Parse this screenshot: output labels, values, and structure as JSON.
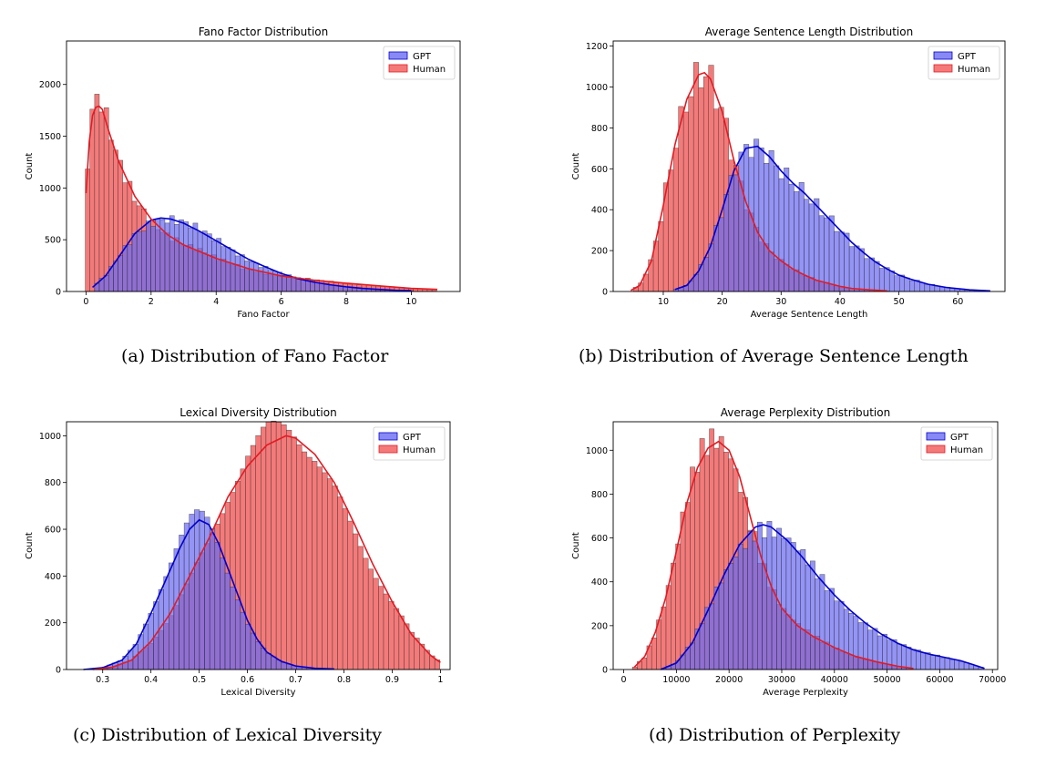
{
  "colors": {
    "gpt_fill": "#6b6bf2",
    "gpt_line": "#0000d0",
    "human_fill": "#f47a7a",
    "human_line": "#e31b23",
    "overlap_fill": "#a4306a"
  },
  "captions": [
    "(a) Distribution of Fano Factor",
    "(b) Distribution of Average Sentence Length",
    "(c) Distribution of Lexical Diversity",
    "(d) Distribution of Perplexity"
  ],
  "chart_data": [
    {
      "type": "histogram",
      "title": "Fano Factor Distribution",
      "xlabel": "Fano Factor",
      "ylabel": "Count",
      "xlim": [
        -0.6,
        11.5
      ],
      "ylim": [
        0,
        2420
      ],
      "xticks": [
        0,
        2,
        4,
        6,
        8,
        10
      ],
      "yticks": [
        0,
        500,
        1000,
        1500,
        2000
      ],
      "legend": {
        "position": "top-right",
        "entries": [
          "GPT",
          "Human"
        ]
      },
      "series": [
        {
          "name": "GPT",
          "x": [
            0.2,
            0.6,
            1.0,
            1.5,
            2.0,
            2.3,
            2.6,
            3.0,
            3.5,
            4.0,
            4.5,
            5.0,
            5.5,
            6.0,
            6.5,
            7.0,
            7.5,
            8.0,
            8.5,
            9.0,
            9.5,
            10.0
          ],
          "values": [
            40,
            150,
            330,
            560,
            690,
            710,
            700,
            660,
            580,
            490,
            400,
            310,
            240,
            175,
            125,
            90,
            65,
            45,
            30,
            20,
            12,
            8
          ]
        },
        {
          "name": "Human",
          "x": [
            0.0,
            0.1,
            0.2,
            0.3,
            0.4,
            0.5,
            0.7,
            1.0,
            1.5,
            2.0,
            2.5,
            3.0,
            4.0,
            5.0,
            6.0,
            7.0,
            8.0,
            9.0,
            10.0,
            10.8
          ],
          "values": [
            950,
            1450,
            1700,
            1780,
            1790,
            1760,
            1550,
            1260,
            920,
            700,
            550,
            450,
            320,
            220,
            150,
            110,
            80,
            55,
            30,
            20
          ]
        }
      ]
    },
    {
      "type": "histogram",
      "title": "Average Sentence Length Distribution",
      "xlabel": "Average Sentence Length",
      "ylabel": "Count",
      "xlim": [
        1.5,
        68
      ],
      "ylim": [
        0,
        1225
      ],
      "xticks": [
        10,
        20,
        30,
        40,
        50,
        60
      ],
      "yticks": [
        0,
        200,
        400,
        600,
        800,
        1000,
        1200
      ],
      "legend": {
        "position": "top-right",
        "entries": [
          "GPT",
          "Human"
        ]
      },
      "series": [
        {
          "name": "GPT",
          "x": [
            12,
            14,
            16,
            18,
            20,
            22,
            24,
            26,
            28,
            30,
            32,
            34,
            36,
            38,
            40,
            42,
            44,
            46,
            48,
            50,
            52,
            55,
            58,
            62,
            65.5
          ],
          "values": [
            10,
            30,
            100,
            220,
            400,
            590,
            700,
            710,
            660,
            590,
            530,
            480,
            420,
            360,
            300,
            240,
            190,
            145,
            110,
            80,
            60,
            35,
            20,
            8,
            3
          ]
        },
        {
          "name": "Human",
          "x": [
            4.5,
            6,
            8,
            10,
            12,
            14,
            16,
            17,
            18,
            20,
            22,
            24,
            26,
            28,
            30,
            32,
            34,
            36,
            38,
            40,
            42,
            45,
            48
          ],
          "values": [
            5,
            30,
            150,
            420,
            720,
            940,
            1060,
            1070,
            1040,
            880,
            640,
            440,
            290,
            200,
            150,
            110,
            80,
            55,
            40,
            25,
            15,
            8,
            3
          ]
        }
      ]
    },
    {
      "type": "histogram",
      "title": "Lexical Diversity Distribution",
      "xlabel": "Lexical Diversity",
      "ylabel": "Count",
      "xlim": [
        0.225,
        1.02
      ],
      "ylim": [
        0,
        1060
      ],
      "xticks": [
        0.3,
        0.4,
        0.5,
        0.6,
        0.7,
        0.8,
        0.9,
        1.0
      ],
      "yticks": [
        0,
        200,
        400,
        600,
        800,
        1000
      ],
      "legend": {
        "position": "top-right",
        "entries": [
          "GPT",
          "Human"
        ]
      },
      "series": [
        {
          "name": "GPT",
          "x": [
            0.26,
            0.3,
            0.34,
            0.37,
            0.4,
            0.43,
            0.46,
            0.48,
            0.5,
            0.52,
            0.54,
            0.56,
            0.58,
            0.6,
            0.62,
            0.64,
            0.67,
            0.7,
            0.74,
            0.78
          ],
          "values": [
            0,
            8,
            40,
            110,
            240,
            380,
            520,
            600,
            640,
            620,
            540,
            430,
            320,
            210,
            130,
            75,
            35,
            15,
            5,
            2
          ]
        },
        {
          "name": "Human",
          "x": [
            0.28,
            0.32,
            0.36,
            0.4,
            0.44,
            0.48,
            0.52,
            0.56,
            0.6,
            0.64,
            0.68,
            0.7,
            0.74,
            0.78,
            0.82,
            0.86,
            0.9,
            0.94,
            0.98,
            1.0
          ],
          "values": [
            0,
            10,
            40,
            120,
            240,
            400,
            560,
            740,
            870,
            960,
            1000,
            990,
            920,
            800,
            630,
            450,
            290,
            150,
            60,
            30
          ]
        }
      ]
    },
    {
      "type": "histogram",
      "title": "Average Perplexity Distribution",
      "xlabel": "Average Perplexity",
      "ylabel": "Count",
      "xlim": [
        -2000,
        71000
      ],
      "ylim": [
        0,
        1130
      ],
      "xticks": [
        0,
        10000,
        20000,
        30000,
        40000,
        50000,
        60000,
        70000
      ],
      "yticks": [
        0,
        200,
        400,
        600,
        800,
        1000
      ],
      "legend": {
        "position": "top-right",
        "entries": [
          "GPT",
          "Human"
        ]
      },
      "series": [
        {
          "name": "GPT",
          "x": [
            7000,
            10000,
            13000,
            16000,
            19000,
            22000,
            25000,
            26500,
            28000,
            31000,
            34000,
            37000,
            40000,
            43000,
            46000,
            49000,
            52000,
            55000,
            58000,
            61000,
            64000,
            66000,
            68500
          ],
          "values": [
            0,
            30,
            120,
            270,
            430,
            570,
            650,
            660,
            650,
            590,
            510,
            420,
            340,
            270,
            210,
            160,
            120,
            90,
            70,
            55,
            40,
            25,
            5
          ]
        },
        {
          "name": "Human",
          "x": [
            2000,
            4000,
            6000,
            8000,
            10000,
            12000,
            14000,
            16000,
            18000,
            20000,
            22000,
            24000,
            26000,
            28000,
            30000,
            33000,
            36000,
            40000,
            44000,
            48000,
            52000,
            55000
          ],
          "values": [
            10,
            60,
            170,
            330,
            540,
            760,
            920,
            1010,
            1040,
            1000,
            880,
            700,
            520,
            380,
            280,
            200,
            150,
            100,
            60,
            35,
            15,
            5
          ]
        }
      ]
    }
  ]
}
